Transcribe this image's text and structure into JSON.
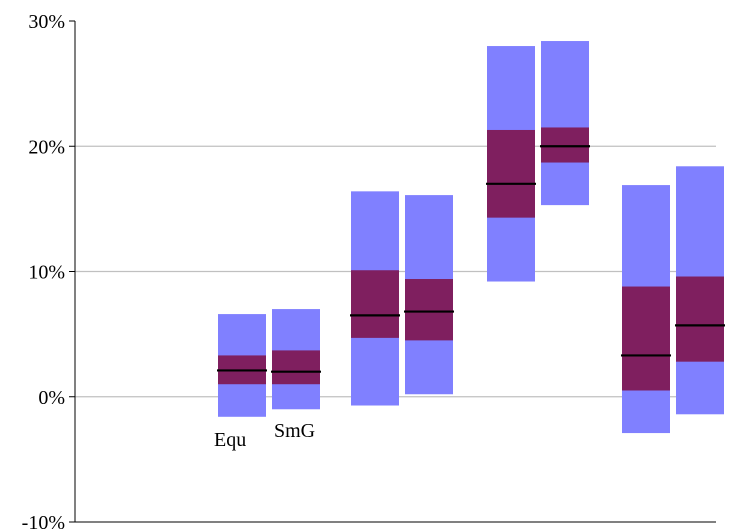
{
  "chart_data": {
    "type": "box",
    "ylim": [
      -10,
      30
    ],
    "yticks": [
      -10,
      0,
      10,
      20,
      30
    ],
    "ytick_labels": [
      "-10%",
      "0%",
      "10%",
      "20%",
      "30%"
    ],
    "grid": true,
    "annotations": [
      "Equ",
      "SmG"
    ],
    "colors": {
      "outer_range": "#8080ff",
      "inner_range": "#7f1f5f",
      "median": "#000000",
      "gridline": "#c0c0c0",
      "axis": "#000000"
    },
    "groups": [
      {
        "boxes": [
          {
            "low": -1.6,
            "q1": 1.0,
            "median": 2.1,
            "q3": 3.3,
            "high": 6.6
          },
          {
            "low": -1.0,
            "q1": 1.0,
            "median": 2.0,
            "q3": 3.7,
            "high": 7.0
          }
        ]
      },
      {
        "boxes": [
          {
            "low": -0.7,
            "q1": 4.7,
            "median": 6.5,
            "q3": 10.1,
            "high": 16.4
          },
          {
            "low": 0.2,
            "q1": 4.5,
            "median": 6.8,
            "q3": 9.4,
            "high": 16.1
          }
        ]
      },
      {
        "boxes": [
          {
            "low": 9.2,
            "q1": 14.3,
            "median": 17.0,
            "q3": 21.3,
            "high": 28.0
          },
          {
            "low": 15.3,
            "q1": 18.7,
            "median": 20.0,
            "q3": 21.5,
            "high": 28.4
          }
        ]
      },
      {
        "boxes": [
          {
            "low": -2.9,
            "q1": 0.5,
            "median": 3.3,
            "q3": 8.8,
            "high": 16.9
          },
          {
            "low": -1.4,
            "q1": 2.8,
            "median": 5.7,
            "q3": 9.6,
            "high": 18.4
          }
        ]
      }
    ]
  }
}
